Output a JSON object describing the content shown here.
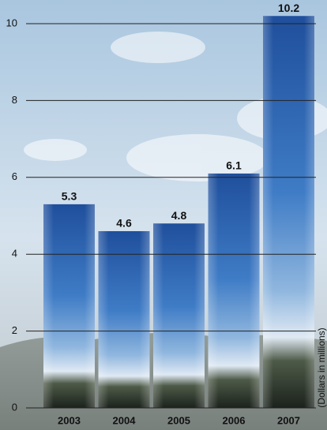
{
  "chart_data": {
    "type": "bar",
    "categories": [
      "2003",
      "2004",
      "2005",
      "2006",
      "2007"
    ],
    "values": [
      5.3,
      4.6,
      4.8,
      6.1,
      10.2
    ],
    "color": "#2d64b0",
    "ylim": [
      0,
      10
    ],
    "yticks": [
      0,
      2,
      4,
      6,
      8,
      10
    ],
    "grid": true,
    "y_axis_label": "(Dollars in millions)"
  }
}
